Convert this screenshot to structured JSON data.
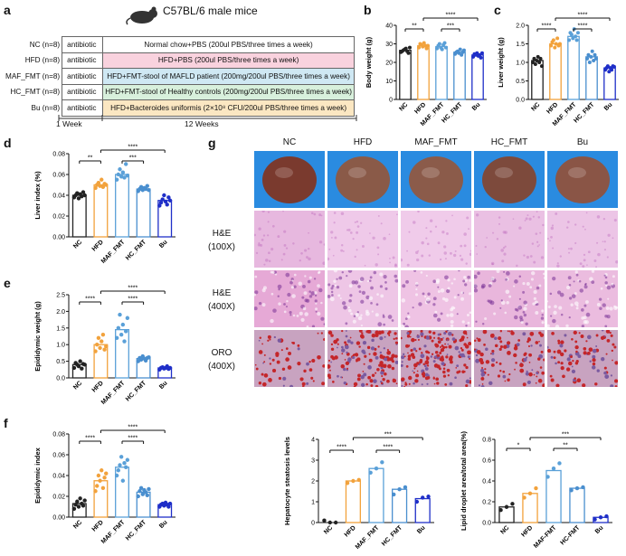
{
  "panel_labels": {
    "a": "a",
    "b": "b",
    "c": "c",
    "d": "d",
    "e": "e",
    "f": "f",
    "g": "g"
  },
  "design": {
    "title": "C57BL/6 male mice",
    "rows": [
      {
        "group": "NC (n=8)",
        "pre": "antibiotic",
        "treatment": "Normal chow+PBS  (200ul PBS/three times a week)",
        "color": "#ffffff"
      },
      {
        "group": "HFD (n=8)",
        "pre": "antibiotic",
        "treatment": "HFD+PBS  (200ul PBS/three times a week)",
        "color": "#f9d2de"
      },
      {
        "group": "MAF_FMT (n=8)",
        "pre": "antibiotic",
        "treatment": "HFD+FMT-stool of MAFLD patient (200mg/200ul PBS/three times a week)",
        "color": "#cfe8f3"
      },
      {
        "group": "HC_FMT (n=8)",
        "pre": "antibiotic",
        "treatment": "HFD+FMT-stool of Healthy controls (200mg/200ul PBS/three times a week)",
        "color": "#d8f0dc"
      },
      {
        "group": "Bu (n=8)",
        "pre": "antibiotic",
        "treatment": "HFD+Bacteroides uniformis (2×10⁸ CFU/200ul PBS/three times a week)",
        "color": "#fbe7c2"
      }
    ],
    "week1": "1 Week",
    "week12": "12 Weeks"
  },
  "micro": {
    "columns": [
      "NC",
      "HFD",
      "MAF_FMT",
      "HC_FMT",
      "Bu"
    ],
    "rows": [
      {
        "label": "",
        "kind": "liver"
      },
      {
        "label": "H&E\n(100X)",
        "kind": "he1"
      },
      {
        "label": "H&E\n(400X)",
        "kind": "he4"
      },
      {
        "label": "ORO\n(400X)",
        "kind": "oro"
      }
    ]
  },
  "colors": {
    "NC": "#222222",
    "HFD": "#f2a23c",
    "MAF_FMT": "#5aa0d8",
    "HC_FMT": "#4a8fcf",
    "Bu": "#1f2fc8"
  },
  "chart_data": [
    {
      "id": "b",
      "type": "bar",
      "ylabel": "Body weight (g)",
      "categories": [
        "NC",
        "HFD",
        "MAF_FMT",
        "HC_FMT",
        "Bu"
      ],
      "values": [
        26.5,
        29,
        28.5,
        25.5,
        24
      ],
      "ylim": [
        0,
        40
      ],
      "yticks": [
        "0",
        "10",
        "20",
        "30",
        "40"
      ],
      "points": [
        [
          25.5,
          26,
          26.5,
          27,
          27.5,
          26,
          25,
          28
        ],
        [
          28,
          30,
          29.5,
          28.5,
          30.5,
          29,
          27.5,
          29
        ],
        [
          27.5,
          29,
          30,
          28,
          27,
          29.5,
          30.5,
          28
        ],
        [
          24.5,
          25.5,
          26,
          25,
          27,
          24,
          25.5,
          26.5
        ],
        [
          23,
          24.5,
          24,
          25,
          23.5,
          24,
          22.5,
          25
        ]
      ],
      "sig": [
        {
          "from": 0,
          "to": 1,
          "label": "**",
          "level": 0
        },
        {
          "from": 2,
          "to": 3,
          "label": "***",
          "level": 0
        },
        {
          "from": 1,
          "to": 4,
          "label": "****",
          "level": 1
        }
      ]
    },
    {
      "id": "c",
      "type": "bar",
      "ylabel": "Liver weight (g)",
      "categories": [
        "NC",
        "HFD",
        "MAF_FMT",
        "HC_FMT",
        "Bu"
      ],
      "values": [
        1.05,
        1.5,
        1.7,
        1.15,
        0.85
      ],
      "ylim": [
        0,
        2.0
      ],
      "yticks": [
        "0.0",
        "0.5",
        "1.0",
        "1.5",
        "2.0"
      ],
      "points": [
        [
          1.0,
          1.1,
          0.95,
          1.05,
          1.15,
          1.0,
          1.1,
          0.9
        ],
        [
          1.45,
          1.55,
          1.6,
          1.4,
          1.5,
          1.65,
          1.45,
          1.5
        ],
        [
          1.6,
          1.8,
          1.75,
          1.65,
          1.9,
          1.7,
          1.6,
          1.8
        ],
        [
          1.1,
          1.2,
          1.0,
          1.15,
          1.3,
          1.05,
          1.2,
          1.1
        ],
        [
          0.8,
          0.85,
          0.9,
          0.75,
          0.85,
          0.8,
          0.9,
          0.88
        ]
      ],
      "sig": [
        {
          "from": 0,
          "to": 1,
          "label": "****",
          "level": 0
        },
        {
          "from": 2,
          "to": 3,
          "label": "****",
          "level": 0
        },
        {
          "from": 1,
          "to": 4,
          "label": "****",
          "level": 1
        }
      ]
    },
    {
      "id": "d",
      "type": "bar",
      "ylabel": "Liver index (%)",
      "categories": [
        "NC",
        "HFD",
        "MAF_FMT",
        "HC_FMT",
        "Bu"
      ],
      "values": [
        0.04,
        0.05,
        0.06,
        0.046,
        0.035
      ],
      "ylim": [
        0,
        0.08
      ],
      "yticks": [
        "0.00",
        "0.02",
        "0.04",
        "0.06",
        "0.08"
      ],
      "points": [
        [
          0.038,
          0.04,
          0.042,
          0.037,
          0.041,
          0.039,
          0.043,
          0.04
        ],
        [
          0.047,
          0.05,
          0.052,
          0.049,
          0.055,
          0.048,
          0.051,
          0.05
        ],
        [
          0.055,
          0.06,
          0.065,
          0.058,
          0.062,
          0.057,
          0.07,
          0.059
        ],
        [
          0.044,
          0.046,
          0.048,
          0.045,
          0.047,
          0.046,
          0.049,
          0.045
        ],
        [
          0.03,
          0.033,
          0.036,
          0.04,
          0.034,
          0.031,
          0.038,
          0.035
        ]
      ],
      "sig": [
        {
          "from": 0,
          "to": 1,
          "label": "**",
          "level": 0
        },
        {
          "from": 2,
          "to": 3,
          "label": "***",
          "level": 0
        },
        {
          "from": 1,
          "to": 4,
          "label": "****",
          "level": 1
        }
      ]
    },
    {
      "id": "e",
      "type": "bar",
      "ylabel": "Epididymic weight (g)",
      "categories": [
        "NC",
        "HFD",
        "MAF_FMT",
        "HC_FMT",
        "Bu"
      ],
      "values": [
        0.4,
        1.0,
        1.45,
        0.58,
        0.3
      ],
      "ylim": [
        0,
        2.5
      ],
      "yticks": [
        "0.0",
        "0.5",
        "1.0",
        "1.5",
        "2.0",
        "2.5"
      ],
      "points": [
        [
          0.3,
          0.45,
          0.4,
          0.35,
          0.5,
          0.28,
          0.42,
          0.4
        ],
        [
          0.8,
          1.0,
          1.2,
          0.9,
          1.1,
          1.3,
          0.85,
          0.95
        ],
        [
          1.2,
          1.5,
          1.9,
          1.3,
          1.6,
          1.1,
          1.4,
          1.8
        ],
        [
          0.5,
          0.6,
          0.55,
          0.65,
          0.58,
          0.52,
          0.6,
          0.62
        ],
        [
          0.25,
          0.3,
          0.32,
          0.28,
          0.3,
          0.35,
          0.27,
          0.3
        ]
      ],
      "sig": [
        {
          "from": 0,
          "to": 1,
          "label": "****",
          "level": 0
        },
        {
          "from": 2,
          "to": 3,
          "label": "****",
          "level": 0
        },
        {
          "from": 1,
          "to": 4,
          "label": "****",
          "level": 1
        }
      ]
    },
    {
      "id": "f",
      "type": "bar",
      "ylabel": "Epididymic index",
      "categories": [
        "NC",
        "HFD",
        "MAF_FMT",
        "HC_FMT",
        "Bu"
      ],
      "values": [
        0.013,
        0.035,
        0.048,
        0.024,
        0.012
      ],
      "ylim": [
        0,
        0.08
      ],
      "yticks": [
        "0.00",
        "0.02",
        "0.04",
        "0.06",
        "0.08"
      ],
      "points": [
        [
          0.008,
          0.012,
          0.015,
          0.01,
          0.018,
          0.013,
          0.011,
          0.016
        ],
        [
          0.025,
          0.03,
          0.04,
          0.035,
          0.045,
          0.028,
          0.038,
          0.042
        ],
        [
          0.04,
          0.045,
          0.05,
          0.058,
          0.035,
          0.052,
          0.048,
          0.055
        ],
        [
          0.02,
          0.025,
          0.028,
          0.022,
          0.026,
          0.024,
          0.021,
          0.027
        ],
        [
          0.01,
          0.012,
          0.013,
          0.011,
          0.014,
          0.012,
          0.01,
          0.013
        ]
      ],
      "sig": [
        {
          "from": 0,
          "to": 1,
          "label": "****",
          "level": 0
        },
        {
          "from": 2,
          "to": 3,
          "label": "****",
          "level": 0
        },
        {
          "from": 1,
          "to": 4,
          "label": "****",
          "level": 1
        }
      ]
    },
    {
      "id": "g1",
      "type": "bar",
      "ylabel": "Hepatocyte steatosis levels",
      "categories": [
        "NC",
        "HFD",
        "MAF_FMT",
        "HC_FMT",
        "Bu"
      ],
      "values": [
        0,
        2,
        2.6,
        1.6,
        1.15
      ],
      "ylim": [
        0,
        4
      ],
      "yticks": [
        "0",
        "1",
        "2",
        "3",
        "4"
      ],
      "points": [
        [
          0.1,
          0,
          0
        ],
        [
          1.9,
          2,
          2.05
        ],
        [
          2.4,
          2.6,
          2.9
        ],
        [
          1.35,
          1.6,
          1.7
        ],
        [
          1.0,
          1.2,
          1.25
        ]
      ],
      "sig": [
        {
          "from": 0,
          "to": 1,
          "label": "****",
          "level": 0
        },
        {
          "from": 2,
          "to": 3,
          "label": "****",
          "level": 0
        },
        {
          "from": 1,
          "to": 4,
          "label": "***",
          "level": 1
        }
      ]
    },
    {
      "id": "g2",
      "type": "bar",
      "ylabel": "Lipid droplet area/total area(%)",
      "categories": [
        "NC",
        "HFD",
        "MAF-FMT",
        "HC-FMT",
        "Bu"
      ],
      "values": [
        0.15,
        0.28,
        0.5,
        0.33,
        0.05
      ],
      "ylim": [
        0,
        0.8
      ],
      "yticks": [
        "0.0",
        "0.2",
        "0.4",
        "0.6",
        "0.8"
      ],
      "points": [
        [
          0.12,
          0.15,
          0.18
        ],
        [
          0.24,
          0.28,
          0.33
        ],
        [
          0.44,
          0.52,
          0.57
        ],
        [
          0.31,
          0.33,
          0.34
        ],
        [
          0.03,
          0.05,
          0.06
        ]
      ],
      "sig": [
        {
          "from": 0,
          "to": 1,
          "label": "*",
          "level": 0
        },
        {
          "from": 2,
          "to": 3,
          "label": "**",
          "level": 0
        },
        {
          "from": 1,
          "to": 4,
          "label": "***",
          "level": 1
        }
      ]
    }
  ]
}
